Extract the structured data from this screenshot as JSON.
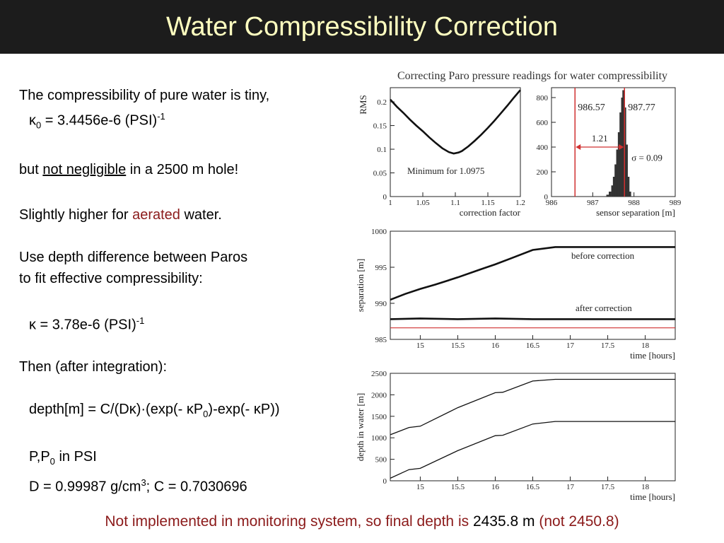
{
  "slide": {
    "title": "Water Compressibility Correction",
    "text": {
      "line1": "The compressibility of pure water is tiny,",
      "k0_sym": "κ",
      "k0_sub": "0",
      "k0_val": " = 3.4456e-6 (PSI)",
      "k0_exp": "-1",
      "line3_a": "but ",
      "line3_u": "not negligible",
      "line3_b": " in a 2500 m hole!",
      "line4_a": "Slightly higher for ",
      "line4_red": "aerated",
      "line4_b": " water.",
      "line5": "Use depth difference between Paros",
      "line6": "to fit effective compressibility:",
      "k_val": "κ = 3.78e-6 (PSI)",
      "k_exp": "-1",
      "line8": "Then (after integration):",
      "depth_a": "depth[m] = C/(Dκ)·(exp(- κP",
      "depth_sub": "0",
      "depth_b": ")-exp(- κP))",
      "pp_a": "P,P",
      "pp_sub": "0",
      "pp_b": " in PSI",
      "d_a": "D = 0.99987 g/cm",
      "d_exp": "3",
      "d_b": "; C = 0.7030696"
    },
    "footer": {
      "part1": "Not implemented in monitoring system, so final depth is ",
      "value": "2435.8 m",
      "part2": " (not 2450.8)"
    }
  },
  "figure": {
    "title": "Correcting Paro pressure readings for water compressibility"
  },
  "chart_data": [
    {
      "type": "line",
      "ylabel": "RMS",
      "xlabel": "correction factor",
      "xlim": [
        1,
        1.2
      ],
      "ylim": [
        0,
        0.23
      ],
      "xticks": [
        "1",
        "1.05",
        "1.1",
        "1.15",
        "1.2"
      ],
      "yticks": [
        "0",
        "0.05",
        "0.1",
        "0.15",
        "0.2"
      ],
      "annotation": "Minimum for 1.0975",
      "series": [
        {
          "x": [
            1.0,
            1.01,
            1.02,
            1.03,
            1.04,
            1.05,
            1.06,
            1.07,
            1.08,
            1.09,
            1.0975,
            1.105,
            1.11,
            1.12,
            1.13,
            1.14,
            1.15,
            1.16,
            1.17,
            1.18,
            1.19,
            1.2
          ],
          "y": [
            0.205,
            0.19,
            0.177,
            0.163,
            0.15,
            0.138,
            0.125,
            0.113,
            0.102,
            0.094,
            0.091,
            0.093,
            0.096,
            0.106,
            0.118,
            0.131,
            0.145,
            0.16,
            0.176,
            0.192,
            0.209,
            0.225
          ]
        }
      ]
    },
    {
      "type": "bar",
      "xlabel": "sensor separation [m]",
      "xlim": [
        986,
        989
      ],
      "ylim": [
        0,
        880
      ],
      "xticks": [
        "986",
        "987",
        "988",
        "989"
      ],
      "yticks": [
        "0",
        "200",
        "400",
        "600",
        "800"
      ],
      "annotations": {
        "left_line": "986.57",
        "right_line": "987.77",
        "arrow": "1.21",
        "sigma": "σ = 0.09"
      },
      "marker_lines": [
        986.57,
        987.77
      ],
      "histogram": {
        "x": [
          987.36,
          987.42,
          987.48,
          987.52,
          987.56,
          987.6,
          987.64,
          987.68,
          987.72,
          987.75,
          987.78,
          987.82,
          987.86,
          987.9
        ],
        "y": [
          15,
          40,
          90,
          160,
          260,
          380,
          520,
          680,
          800,
          860,
          720,
          420,
          160,
          40
        ]
      }
    },
    {
      "type": "line",
      "ylabel": "separation [m]",
      "xlabel": "time [hours]",
      "xlim": [
        14.6,
        18.4
      ],
      "ylim": [
        985,
        1000
      ],
      "xticks": [
        "15",
        "15.5",
        "16",
        "16.5",
        "17",
        "17.5",
        "18"
      ],
      "yticks": [
        "985",
        "990",
        "995",
        "1000"
      ],
      "reference_line": 986.6,
      "series": [
        {
          "name": "before correction",
          "x": [
            14.6,
            14.8,
            15.0,
            15.2,
            15.5,
            15.8,
            16.0,
            16.2,
            16.5,
            16.8,
            17.0,
            17.5,
            18.0,
            18.4
          ],
          "y": [
            990.5,
            991.3,
            992.0,
            992.6,
            993.6,
            994.7,
            995.4,
            996.2,
            997.4,
            997.8,
            997.8,
            997.8,
            997.8,
            997.8
          ]
        },
        {
          "name": "after correction",
          "x": [
            14.6,
            15.0,
            15.5,
            16.0,
            16.5,
            17.0,
            17.5,
            18.0,
            18.4
          ],
          "y": [
            987.8,
            987.9,
            987.8,
            987.9,
            987.8,
            987.8,
            987.8,
            987.8,
            987.8
          ]
        }
      ]
    },
    {
      "type": "line",
      "ylabel": "depth in water [m]",
      "xlabel": "time [hours]",
      "xlim": [
        14.6,
        18.4
      ],
      "ylim": [
        0,
        2500
      ],
      "xticks": [
        "15",
        "15.5",
        "16",
        "16.5",
        "17",
        "17.5",
        "18"
      ],
      "yticks": [
        "0",
        "500",
        "1000",
        "1500",
        "2000",
        "2500"
      ],
      "series": [
        {
          "x": [
            14.6,
            14.85,
            15.0,
            15.5,
            16.0,
            16.1,
            16.5,
            16.8,
            17.0,
            18.0,
            18.4
          ],
          "y": [
            1070,
            1240,
            1270,
            1700,
            2050,
            2060,
            2320,
            2360,
            2360,
            2360,
            2360
          ]
        },
        {
          "x": [
            14.6,
            14.85,
            15.0,
            15.5,
            16.0,
            16.1,
            16.5,
            16.8,
            17.0,
            18.0,
            18.4
          ],
          "y": [
            60,
            260,
            290,
            700,
            1050,
            1060,
            1320,
            1380,
            1380,
            1380,
            1380
          ]
        }
      ]
    }
  ]
}
